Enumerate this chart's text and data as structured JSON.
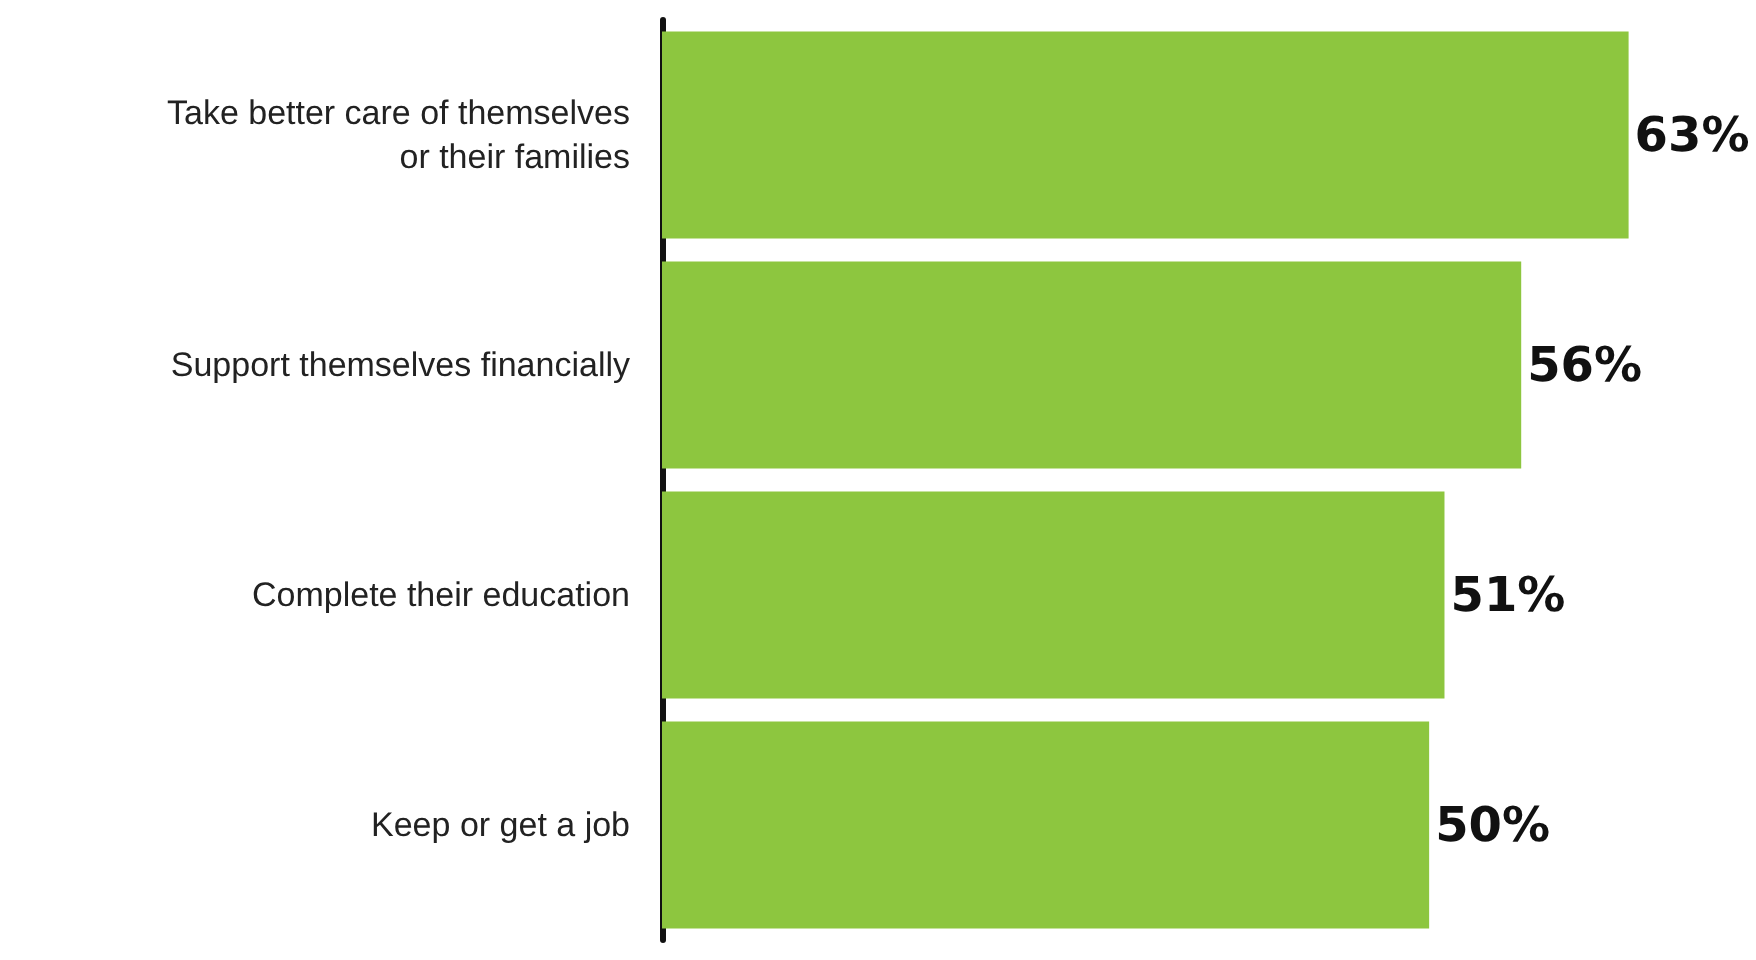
{
  "chart_data": {
    "type": "bar",
    "orientation": "horizontal",
    "categories": [
      "Take better care of themselves\nor their families",
      "Support themselves financially",
      "Complete their education",
      "Keep or get a job"
    ],
    "values": [
      63,
      56,
      51,
      50
    ],
    "color": "#8dc63f",
    "value_labels": [
      "63%",
      "56%",
      "51%",
      "50%"
    ]
  }
}
